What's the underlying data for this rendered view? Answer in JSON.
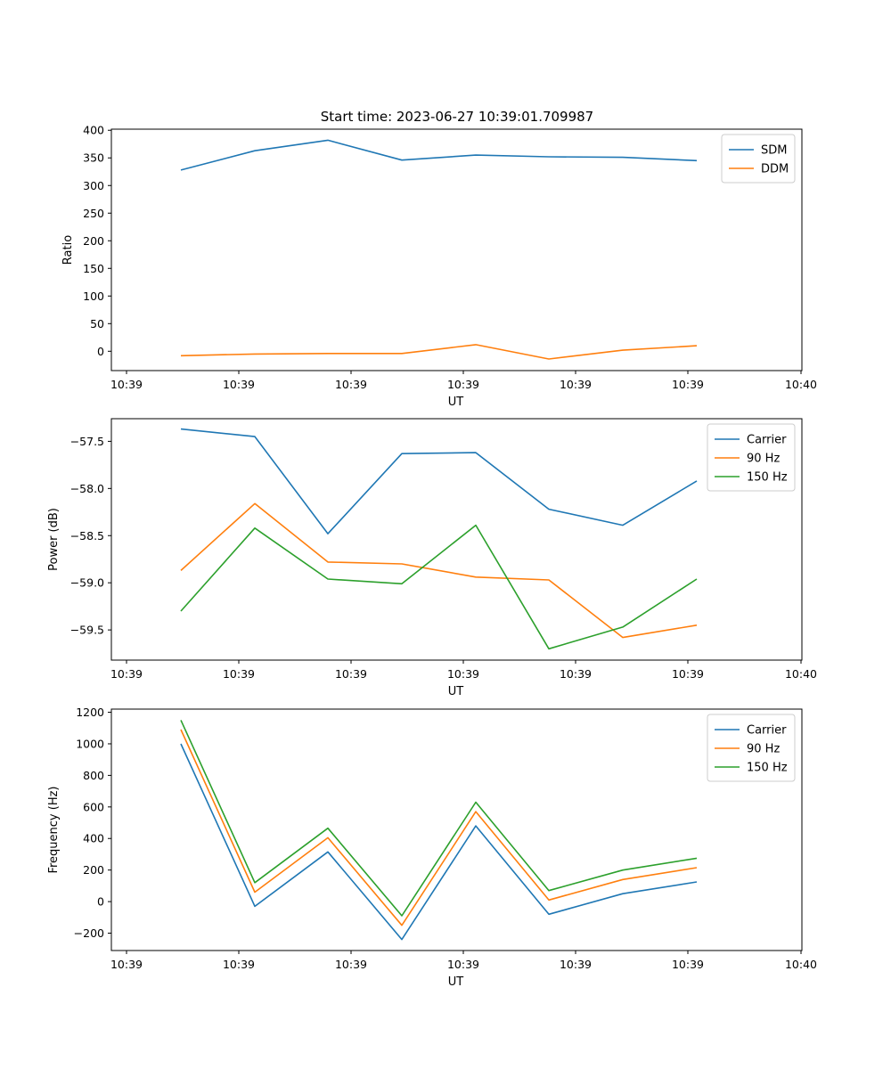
{
  "figure_title": "Start time: 2023-06-27 10:39:01.709987",
  "colors": {
    "blue": "#1f77b4",
    "orange": "#ff7f0e",
    "green": "#2ca02c"
  },
  "chart_data": [
    {
      "type": "line",
      "xlabel": "UT",
      "ylabel": "Ratio",
      "ylim": [
        -35,
        402
      ],
      "yticks": [
        0,
        50,
        100,
        150,
        200,
        250,
        300,
        350,
        400
      ],
      "xticklabels": [
        "10:39",
        "10:39",
        "10:39",
        "10:39",
        "10:39",
        "10:39",
        "10:39",
        "10:40"
      ],
      "legend_location": "top-right",
      "grid": false,
      "series": [
        {
          "name": "SDM",
          "color": "#1f77b4",
          "values": [
            328,
            363,
            382,
            346,
            355,
            352,
            351,
            345
          ]
        },
        {
          "name": "DDM",
          "color": "#ff7f0e",
          "values": [
            -8,
            -5,
            -4,
            -4,
            12,
            -14,
            2,
            10
          ]
        }
      ]
    },
    {
      "type": "line",
      "xlabel": "UT",
      "ylabel": "Power (dB)",
      "ylim": [
        -59.82,
        -57.26
      ],
      "yticks": [
        -57.5,
        -58.0,
        -58.5,
        -59.0,
        -59.5
      ],
      "yticklabels": [
        "−57.5",
        "−58.0",
        "−58.5",
        "−59.0",
        "−59.5"
      ],
      "xticklabels": [
        "10:39",
        "10:39",
        "10:39",
        "10:39",
        "10:39",
        "10:39",
        "10:39",
        "10:40"
      ],
      "legend_location": "top-right",
      "grid": false,
      "series": [
        {
          "name": "Carrier",
          "color": "#1f77b4",
          "values": [
            -57.37,
            -57.45,
            -58.48,
            -57.63,
            -57.62,
            -58.22,
            -58.39,
            -57.92
          ]
        },
        {
          "name": "90 Hz",
          "color": "#ff7f0e",
          "values": [
            -58.87,
            -58.16,
            -58.78,
            -58.8,
            -58.94,
            -58.97,
            -59.58,
            -59.45
          ]
        },
        {
          "name": "150 Hz",
          "color": "#2ca02c",
          "values": [
            -59.3,
            -58.42,
            -58.96,
            -59.01,
            -58.39,
            -59.7,
            -59.47,
            -58.96
          ]
        }
      ]
    },
    {
      "type": "line",
      "xlabel": "UT",
      "ylabel": "Frequency (Hz)",
      "ylim": [
        -310,
        1220
      ],
      "yticks": [
        -200,
        0,
        200,
        400,
        600,
        800,
        1000,
        1200
      ],
      "yticklabels": [
        "−200",
        "0",
        "200",
        "400",
        "600",
        "800",
        "1000",
        "1200"
      ],
      "xticklabels": [
        "10:39",
        "10:39",
        "10:39",
        "10:39",
        "10:39",
        "10:39",
        "10:39",
        "10:40"
      ],
      "legend_location": "top-right",
      "grid": false,
      "series": [
        {
          "name": "Carrier",
          "color": "#1f77b4",
          "values": [
            1000,
            -30,
            315,
            -240,
            480,
            -80,
            50,
            125
          ]
        },
        {
          "name": "90 Hz",
          "color": "#ff7f0e",
          "values": [
            1090,
            60,
            405,
            -150,
            570,
            10,
            140,
            215
          ]
        },
        {
          "name": "150 Hz",
          "color": "#2ca02c",
          "values": [
            1150,
            120,
            465,
            -90,
            630,
            70,
            200,
            275
          ]
        }
      ]
    }
  ]
}
